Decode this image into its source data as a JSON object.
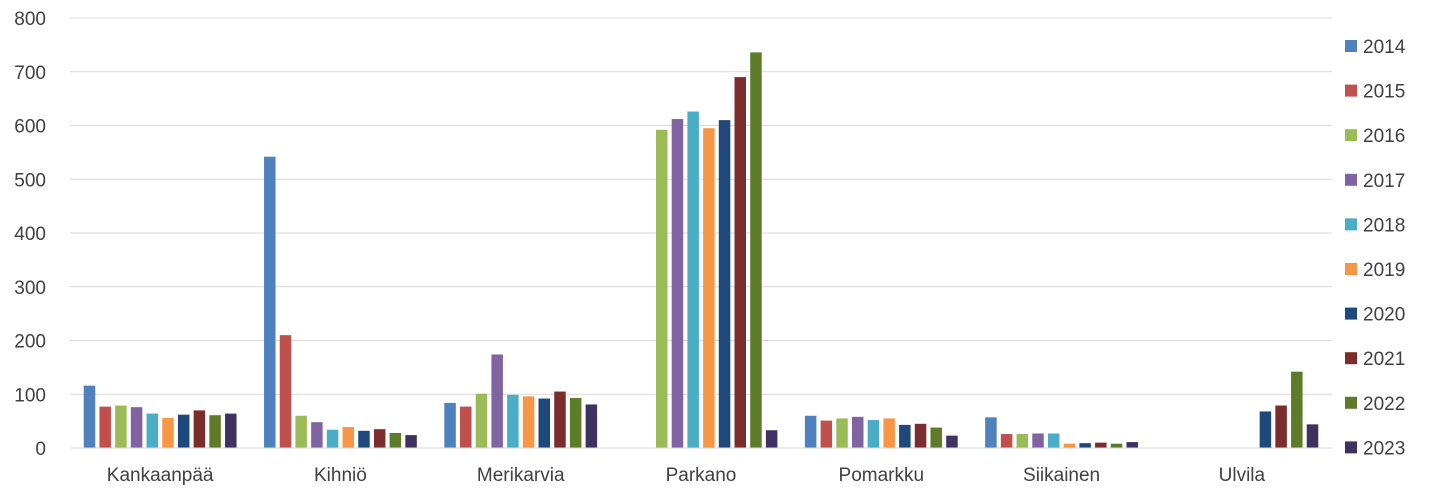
{
  "chart_data": {
    "type": "bar",
    "title": "",
    "xlabel": "",
    "ylabel": "",
    "ylim": [
      0,
      800
    ],
    "yticks": [
      0,
      100,
      200,
      300,
      400,
      500,
      600,
      700,
      800
    ],
    "grid": true,
    "legend_position": "right",
    "categories": [
      "Kankaanpää",
      "Kihniö",
      "Merikarvia",
      "Parkano",
      "Pomarkku",
      "Siikainen",
      "Ulvila"
    ],
    "series": [
      {
        "name": "2014",
        "color": "#4f81bd",
        "values": [
          116,
          542,
          84,
          null,
          60,
          57,
          null
        ]
      },
      {
        "name": "2015",
        "color": "#c0504d",
        "values": [
          77,
          210,
          77,
          null,
          51,
          26,
          null
        ]
      },
      {
        "name": "2016",
        "color": "#9bbb59",
        "values": [
          79,
          60,
          101,
          592,
          55,
          26,
          null
        ]
      },
      {
        "name": "2017",
        "color": "#8064a2",
        "values": [
          76,
          48,
          174,
          612,
          58,
          27,
          null
        ]
      },
      {
        "name": "2018",
        "color": "#4bacc6",
        "values": [
          64,
          34,
          99,
          626,
          52,
          27,
          null
        ]
      },
      {
        "name": "2019",
        "color": "#f79646",
        "values": [
          56,
          39,
          96,
          595,
          55,
          8,
          null
        ]
      },
      {
        "name": "2020",
        "color": "#1f497d",
        "values": [
          62,
          32,
          92,
          610,
          43,
          9,
          68
        ]
      },
      {
        "name": "2021",
        "color": "#7b2c2c",
        "values": [
          70,
          35,
          105,
          690,
          45,
          10,
          79
        ]
      },
      {
        "name": "2022",
        "color": "#5e7b2a",
        "values": [
          61,
          28,
          93,
          736,
          38,
          8,
          142
        ]
      },
      {
        "name": "2023",
        "color": "#3f3160",
        "values": [
          64,
          24,
          81,
          33,
          23,
          11,
          44
        ]
      }
    ]
  }
}
